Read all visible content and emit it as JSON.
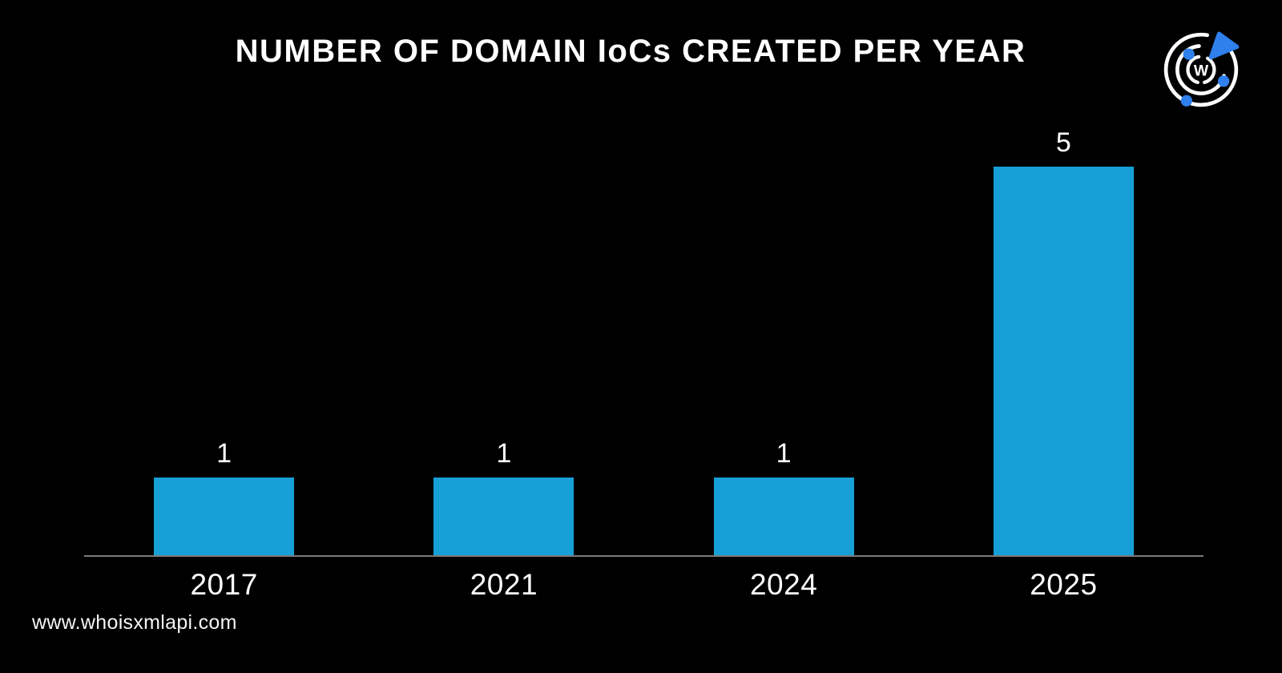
{
  "title": "NUMBER OF DOMAIN IoCs CREATED PER YEAR",
  "footer": {
    "website": "www.whoisxmlapi.com"
  },
  "logo": {
    "name": "whoisxmlapi-logo",
    "letter": "W",
    "ring_color": "#ffffff",
    "accent_blue": "#2f80ed"
  },
  "colors": {
    "background": "#000000",
    "bar": "#17a0d8",
    "axis_line": "#7a7a7a",
    "text": "#ffffff"
  },
  "chart_data": {
    "type": "bar",
    "title": "NUMBER OF DOMAIN IoCs CREATED PER YEAR",
    "categories": [
      "2017",
      "2021",
      "2024",
      "2025"
    ],
    "values": [
      1,
      1,
      1,
      5
    ],
    "xlabel": "",
    "ylabel": "",
    "ylim": [
      0,
      5
    ],
    "bar_color": "#17a0d8",
    "data_labels": true,
    "grid": false,
    "legend": "none",
    "background": "#000000"
  }
}
